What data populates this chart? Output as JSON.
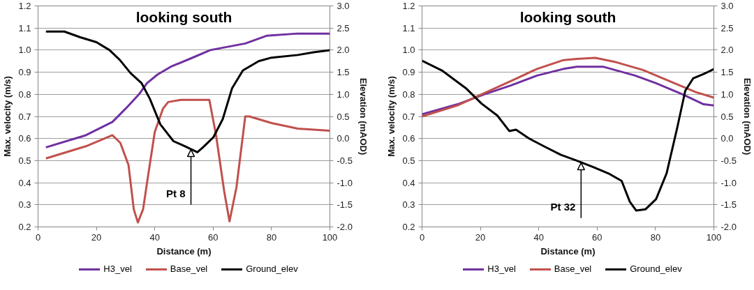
{
  "chart_data": [
    {
      "type": "line",
      "title": "looking south",
      "xlabel": "Distance (m)",
      "ylabel": "Max. velocity (m/s)",
      "y2label": "Elevation (mAOD)",
      "xlim": [
        0,
        100
      ],
      "xticks": [
        0,
        20,
        40,
        60,
        80,
        100
      ],
      "ylim": [
        0.2,
        1.2
      ],
      "yticks": [
        {
          "value": 0.2,
          "label": "0.2"
        },
        {
          "value": 0.3,
          "label": "0.3"
        },
        {
          "value": 0.4,
          "label": "0.4"
        },
        {
          "value": 0.5,
          "label": "0.5"
        },
        {
          "value": 0.6,
          "label": "0.6"
        },
        {
          "value": 0.7,
          "label": "0.7"
        },
        {
          "value": 0.8,
          "label": "0.8"
        },
        {
          "value": 0.9,
          "label": "0.9"
        },
        {
          "value": 1.0,
          "label": "1.0"
        },
        {
          "value": 1.1,
          "label": "1.1"
        },
        {
          "value": 1.2,
          "label": "1.2"
        }
      ],
      "y2lim": [
        -2.0,
        3.0
      ],
      "y2ticks": [
        {
          "value": -2.0,
          "label": "-2.0"
        },
        {
          "value": -1.5,
          "label": "-1.5"
        },
        {
          "value": -1.0,
          "label": "-1.0"
        },
        {
          "value": -0.5,
          "label": "-0.5"
        },
        {
          "value": 0.0,
          "label": "0.0"
        },
        {
          "value": 0.5,
          "label": "0.5"
        },
        {
          "value": 1.0,
          "label": "1.0"
        },
        {
          "value": 1.5,
          "label": "1.5"
        },
        {
          "value": 2.0,
          "label": "2.0"
        },
        {
          "value": 2.5,
          "label": "2.5"
        },
        {
          "value": 3.0,
          "label": "3.0"
        }
      ],
      "grid": "y",
      "legend": "bottom",
      "annotations": [
        {
          "text": "Pt 8",
          "x": 52.4,
          "y": 0.55
        }
      ],
      "series": [
        {
          "name": "H3_vel",
          "color": "#7030a0",
          "x": [
            2.7,
            16.4,
            25.5,
            30,
            34.6,
            37.3,
            41,
            45.5,
            52.8,
            59,
            71,
            78.3,
            89,
            100
          ],
          "values": [
            0.56,
            0.615,
            0.675,
            0.735,
            0.8,
            0.85,
            0.89,
            0.925,
            0.965,
            1.0,
            1.03,
            1.065,
            1.075,
            1.075
          ]
        },
        {
          "name": "Base_vel",
          "color": "#c0504d",
          "x": [
            2.7,
            16.4,
            25.5,
            28.2,
            31,
            32.8,
            34.2,
            36,
            37.8,
            40,
            42.8,
            44.6,
            49,
            58.7,
            61,
            63.8,
            65.6,
            68,
            71,
            72.4,
            80,
            89,
            100
          ],
          "values": [
            0.51,
            0.565,
            0.615,
            0.58,
            0.48,
            0.28,
            0.22,
            0.28,
            0.44,
            0.63,
            0.735,
            0.765,
            0.775,
            0.775,
            0.615,
            0.36,
            0.225,
            0.38,
            0.7,
            0.7,
            0.67,
            0.645,
            0.635
          ]
        },
        {
          "name": "Ground_elev",
          "color": "#000000",
          "axis": "y2",
          "x": [
            2.7,
            9,
            14.5,
            20,
            24.5,
            28,
            31.7,
            35.5,
            38.3,
            41.9,
            46.4,
            50.5,
            54.6,
            56.5,
            60.1,
            63.3,
            66.5,
            70.2,
            75.6,
            80,
            89,
            94.4,
            100
          ],
          "values": [
            2.42,
            2.42,
            2.29,
            2.18,
            2.0,
            1.78,
            1.48,
            1.25,
            0.9,
            0.32,
            -0.06,
            -0.18,
            -0.31,
            -0.2,
            0.03,
            0.44,
            1.14,
            1.54,
            1.75,
            1.83,
            1.89,
            1.95,
            2.0
          ]
        }
      ]
    },
    {
      "type": "line",
      "title": "looking south",
      "xlabel": "Distance (m)",
      "ylabel": "Max. velocity (m/s)",
      "y2label": "Elevation (mAOD)",
      "xlim": [
        0,
        100
      ],
      "xticks": [
        0,
        20,
        40,
        60,
        80,
        100
      ],
      "ylim": [
        0.2,
        1.2
      ],
      "yticks": [
        {
          "value": 0.2,
          "label": "0.2"
        },
        {
          "value": 0.3,
          "label": "0.3"
        },
        {
          "value": 0.4,
          "label": "0.4"
        },
        {
          "value": 0.5,
          "label": "0.5"
        },
        {
          "value": 0.6,
          "label": "0.6"
        },
        {
          "value": 0.7,
          "label": "0.7"
        },
        {
          "value": 0.8,
          "label": "0.8"
        },
        {
          "value": 0.9,
          "label": "0.9"
        },
        {
          "value": 1.0,
          "label": "1.0"
        },
        {
          "value": 1.1,
          "label": "1.1"
        },
        {
          "value": 1.2,
          "label": "1.2"
        }
      ],
      "y2lim": [
        -2.0,
        3.0
      ],
      "y2ticks": [
        {
          "value": -2.0,
          "label": "-2.0"
        },
        {
          "value": -1.5,
          "label": "-1.5"
        },
        {
          "value": -1.0,
          "label": "-1.0"
        },
        {
          "value": -0.5,
          "label": "-0.5"
        },
        {
          "value": 0.0,
          "label": "0.0"
        },
        {
          "value": 0.5,
          "label": "0.5"
        },
        {
          "value": 1.0,
          "label": "1.0"
        },
        {
          "value": 1.5,
          "label": "1.5"
        },
        {
          "value": 2.0,
          "label": "2.0"
        },
        {
          "value": 2.5,
          "label": "2.5"
        },
        {
          "value": 3.0,
          "label": "3.0"
        }
      ],
      "grid": "y",
      "legend": "bottom",
      "annotations": [
        {
          "text": "Pt 32",
          "x": 54.5,
          "y": 0.49
        }
      ],
      "series": [
        {
          "name": "H3_vel",
          "color": "#7030a0",
          "x": [
            0,
            12.2,
            21.3,
            30.4,
            39.4,
            48.5,
            53,
            62,
            73,
            80.2,
            89.3,
            96.5,
            100
          ],
          "values": [
            0.71,
            0.755,
            0.8,
            0.84,
            0.885,
            0.915,
            0.925,
            0.925,
            0.885,
            0.85,
            0.8,
            0.755,
            0.75
          ]
        },
        {
          "name": "Base_vel",
          "color": "#c0504d",
          "x": [
            0,
            12.2,
            21.3,
            30.4,
            39.4,
            48.5,
            53,
            59.4,
            66.6,
            75.7,
            84.8,
            93.8,
            100
          ],
          "values": [
            0.7,
            0.75,
            0.805,
            0.86,
            0.915,
            0.955,
            0.96,
            0.965,
            0.945,
            0.91,
            0.86,
            0.81,
            0.785
          ]
        },
        {
          "name": "Ground_elev",
          "color": "#000000",
          "axis": "y2",
          "x": [
            0,
            6.8,
            15,
            20.4,
            25.8,
            29.9,
            32.2,
            36.7,
            42.2,
            47.6,
            53,
            58.5,
            63.9,
            68.4,
            71.2,
            73.4,
            76.6,
            80.2,
            83.8,
            87.5,
            90.2,
            92.9,
            96.5,
            100
          ],
          "values": [
            1.76,
            1.54,
            1.14,
            0.79,
            0.52,
            0.17,
            0.2,
            0.0,
            -0.19,
            -0.37,
            -0.5,
            -0.64,
            -0.79,
            -0.96,
            -1.43,
            -1.63,
            -1.6,
            -1.37,
            -0.79,
            0.26,
            1.08,
            1.36,
            1.46,
            1.57
          ]
        }
      ]
    }
  ]
}
